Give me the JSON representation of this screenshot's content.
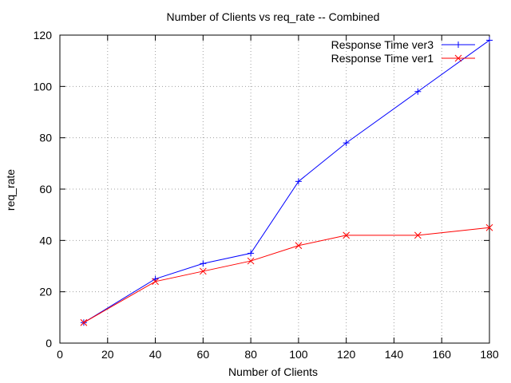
{
  "chart_data": {
    "type": "line",
    "title": "Number of Clients vs req_rate -- Combined",
    "xlabel": "Number of Clients",
    "ylabel": "req_rate",
    "xlim": [
      0,
      180
    ],
    "ylim": [
      0,
      120
    ],
    "xticks": [
      0,
      20,
      40,
      60,
      80,
      100,
      120,
      140,
      160,
      180
    ],
    "yticks": [
      0,
      20,
      40,
      60,
      80,
      100,
      120
    ],
    "grid": true,
    "legend_position": "top-right",
    "x": [
      10,
      40,
      60,
      80,
      100,
      120,
      150,
      180
    ],
    "series": [
      {
        "name": "Response Time ver3",
        "color": "#0000ff",
        "marker": "plus",
        "values": [
          8,
          25,
          31,
          35,
          63,
          78,
          98,
          118
        ]
      },
      {
        "name": "Response Time ver1",
        "color": "#ff0000",
        "marker": "x",
        "values": [
          8,
          24,
          28,
          32,
          38,
          42,
          42,
          45
        ]
      }
    ]
  }
}
